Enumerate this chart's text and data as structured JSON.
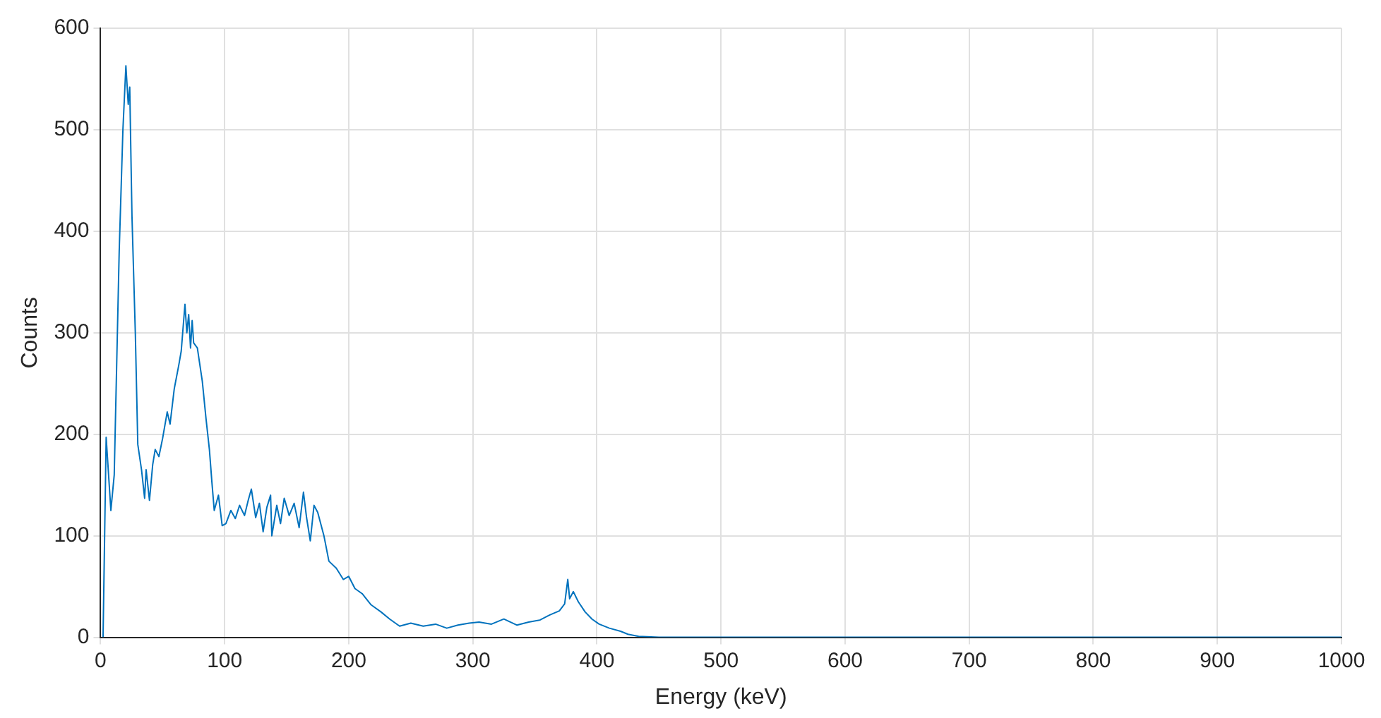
{
  "chart_data": {
    "type": "line",
    "xlabel": "Energy (keV)",
    "ylabel": "Counts",
    "xlim": [
      0,
      1000
    ],
    "ylim": [
      0,
      600
    ],
    "xticks": [
      0,
      100,
      200,
      300,
      400,
      500,
      600,
      700,
      800,
      900,
      1000
    ],
    "yticks": [
      0,
      100,
      200,
      300,
      400,
      500,
      600
    ],
    "grid": true,
    "legend": false,
    "marker": "none",
    "line_style": "solid",
    "series": [
      {
        "color": "#0072bd",
        "x": [
          2,
          4.5,
          8.3,
          11,
          15,
          18,
          20.4,
          22.3,
          23.5,
          25.3,
          28,
          30,
          33,
          35.5,
          36.7,
          39.4,
          42,
          44,
          47,
          50,
          53.7,
          56,
          59.4,
          63,
          65,
          68,
          69.5,
          71,
          72.5,
          73.8,
          75,
          78,
          82,
          85,
          87.7,
          89.7,
          91.6,
          95,
          98,
          101,
          105,
          108.6,
          112,
          116,
          119,
          121.5,
          125,
          128,
          131,
          134,
          137,
          138,
          142,
          145,
          148,
          152,
          156,
          160,
          163.5,
          166,
          169,
          172,
          175,
          180,
          184,
          190,
          195.6,
          200,
          205,
          210.8,
          218,
          226,
          233,
          241,
          250,
          260,
          270,
          279,
          288,
          297,
          305,
          315,
          325,
          335.6,
          345,
          354,
          362,
          369.7,
          374,
          376.5,
          378,
          381,
          385,
          390.5,
          396,
          401.8,
          410,
          419,
          425,
          433.6,
          450,
          500,
          600,
          700,
          800,
          900,
          1000
        ],
        "values": [
          0,
          197,
          125,
          160,
          380,
          500,
          563,
          525,
          542,
          415,
          300,
          190,
          165,
          137,
          165,
          135,
          170,
          185,
          178,
          196,
          222,
          210,
          245,
          268,
          282,
          328,
          300,
          318,
          285,
          312,
          290,
          285,
          252,
          215,
          185,
          153,
          125,
          140,
          110,
          112,
          125,
          117,
          130,
          120,
          135,
          146,
          118,
          132,
          104,
          128,
          140,
          100,
          130,
          112,
          137,
          120,
          132,
          108,
          143,
          118,
          95,
          130,
          123,
          100,
          75,
          68,
          57,
          60,
          48,
          43,
          32,
          25,
          18,
          11,
          14,
          11,
          13,
          9,
          12,
          14,
          15,
          13,
          18,
          12,
          15,
          17,
          22,
          26,
          33,
          57,
          38,
          45,
          35,
          25,
          18,
          13,
          9,
          6,
          3,
          1,
          0,
          0,
          0,
          0,
          0,
          0,
          0
        ]
      }
    ]
  }
}
